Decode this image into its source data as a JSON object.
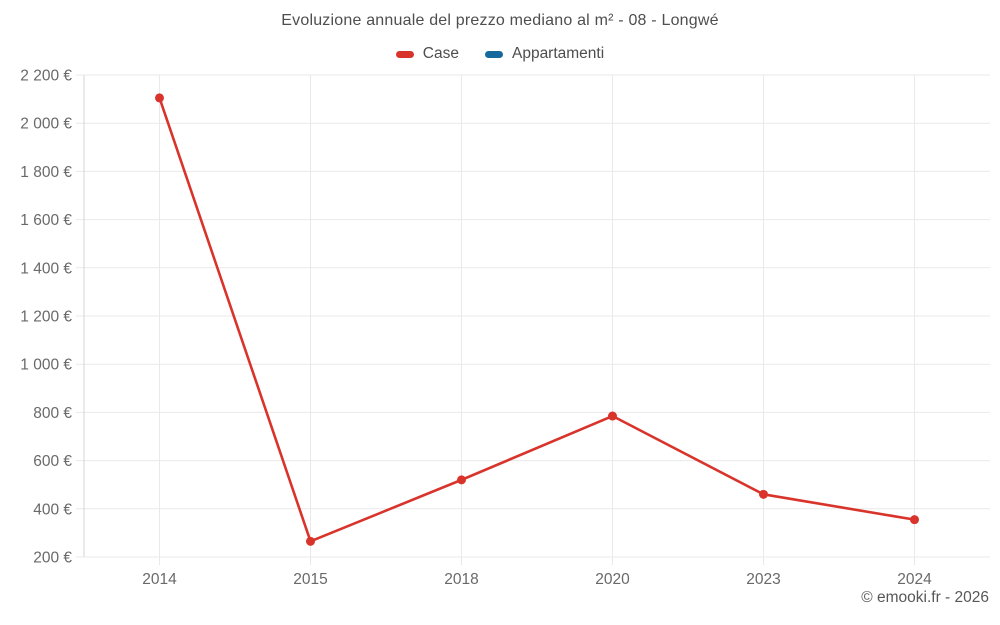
{
  "chart_data": {
    "type": "line",
    "title": "Evoluzione annuale del prezzo mediano al m² - 08 - Longwé",
    "categories": [
      "2014",
      "2015",
      "2018",
      "2020",
      "2023",
      "2024"
    ],
    "series": [
      {
        "name": "Case",
        "color": "#d9342c",
        "values": [
          2105,
          265,
          520,
          785,
          460,
          355
        ]
      },
      {
        "name": "Appartamenti",
        "color": "#15699c",
        "values": []
      }
    ],
    "ylim": [
      200,
      2200
    ],
    "y_tick_values": [
      200,
      400,
      600,
      800,
      1000,
      1200,
      1400,
      1600,
      1800,
      2000,
      2200
    ],
    "y_tick_labels": [
      "200 €",
      "400 €",
      "600 €",
      "800 €",
      "1 000 €",
      "1 200 €",
      "1 400 €",
      "1 600 €",
      "1 800 €",
      "2 000 €",
      "2 200 €"
    ],
    "grid": true,
    "legend_position": "top",
    "colors": {
      "grid": "#e9e9e9",
      "axis": "#d4d4d4",
      "tick_text": "#696969",
      "title_text": "#4e4e4e"
    }
  },
  "attribution": "© emooki.fr - 2026"
}
